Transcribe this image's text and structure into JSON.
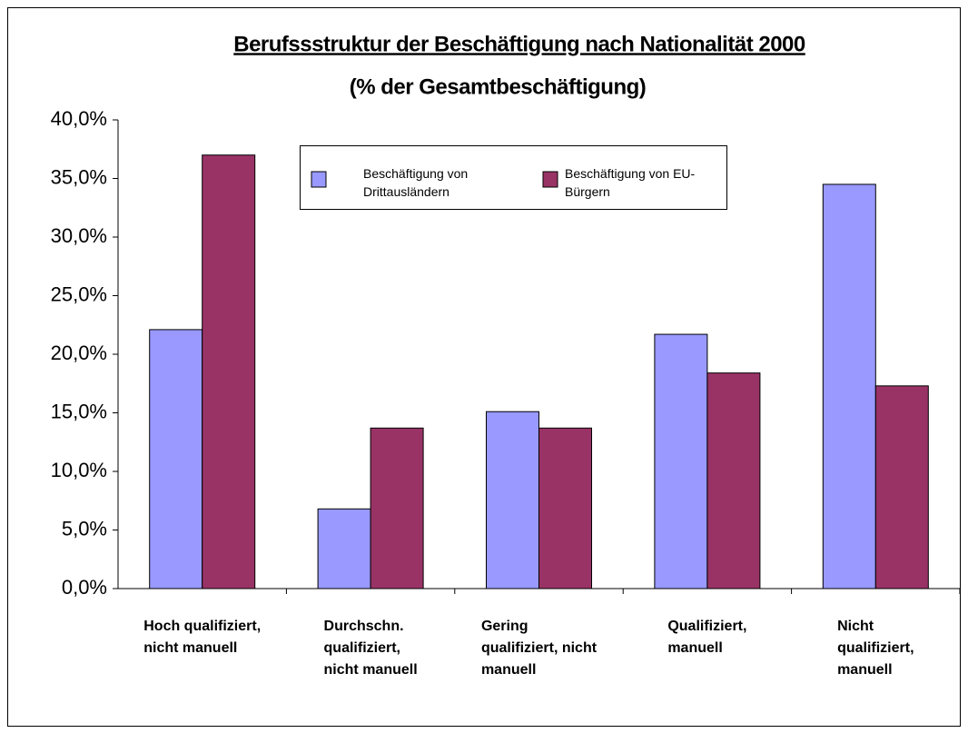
{
  "chart_data": {
    "type": "bar",
    "title": "Berufssstruktur der Beschäftigung nach Nationalität 2000",
    "subtitle": "(% der Gesamtbeschäftigung)",
    "categories": [
      "Hoch qualifiziert,\nnicht manuell",
      "Durchschn.\nqualifiziert,\nnicht manuell",
      "Gering\nqualifiziert, nicht\nmanuell",
      "Qualifiziert,\nmanuell",
      "Nicht\nqualifiziert,\nmanuell"
    ],
    "series": [
      {
        "name": "Beschäftigung von\nDrittausländern",
        "color": "#9999ff",
        "values": [
          22.1,
          6.8,
          15.1,
          21.7,
          34.5
        ]
      },
      {
        "name": "Beschäftigung von EU-\nBürgern",
        "color": "#993366",
        "values": [
          37.0,
          13.7,
          13.7,
          18.4,
          17.3
        ]
      }
    ],
    "ylim": [
      0,
      40
    ],
    "yticks": [
      {
        "value": 0,
        "label": "0,0%"
      },
      {
        "value": 5,
        "label": "5,0%"
      },
      {
        "value": 10,
        "label": "10,0%"
      },
      {
        "value": 15,
        "label": "15,0%"
      },
      {
        "value": 20,
        "label": "20,0%"
      },
      {
        "value": 25,
        "label": "25,0%"
      },
      {
        "value": 30,
        "label": "30,0%"
      },
      {
        "value": 35,
        "label": "35,0%"
      },
      {
        "value": 40,
        "label": "40,0%"
      }
    ],
    "grid": false
  }
}
